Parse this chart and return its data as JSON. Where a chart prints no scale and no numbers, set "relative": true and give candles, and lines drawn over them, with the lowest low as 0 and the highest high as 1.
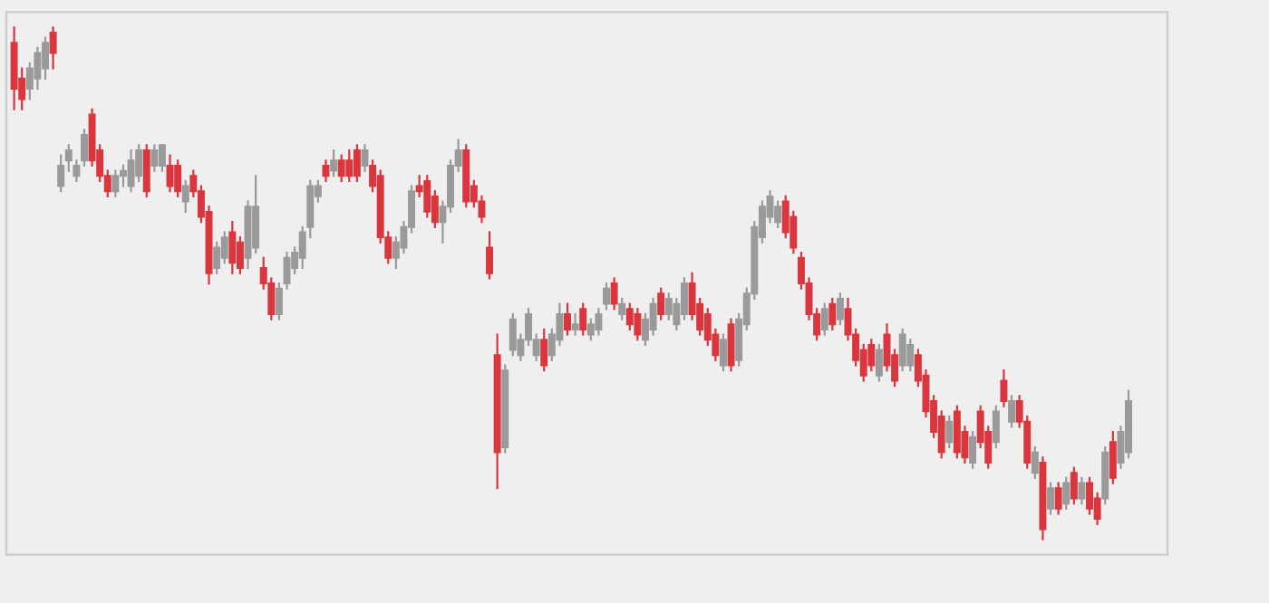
{
  "chart_data": {
    "type": "candlestick",
    "relative": true,
    "categories": [
      null,
      null,
      null,
      null,
      null,
      null,
      null,
      null,
      null,
      null,
      null,
      null,
      null,
      null,
      null,
      null,
      null,
      null,
      null,
      null,
      null,
      null,
      null,
      null,
      null,
      null,
      null,
      null,
      null,
      null,
      null,
      null,
      null,
      null,
      null,
      null,
      null,
      null,
      null,
      null,
      null,
      null,
      null,
      null,
      null,
      null,
      null,
      null,
      null,
      null,
      null,
      null,
      null,
      null,
      null,
      null,
      null,
      null,
      null,
      null,
      null,
      null,
      null,
      null,
      null,
      null,
      null,
      null,
      null,
      null,
      null,
      null,
      null,
      null,
      null,
      null,
      null,
      null,
      null,
      null,
      null,
      null,
      null,
      null,
      null,
      null,
      null,
      null,
      null,
      null,
      null,
      null,
      null,
      null,
      null,
      null,
      null,
      null,
      null,
      null,
      null,
      null,
      null,
      null,
      null,
      null,
      null,
      null,
      null,
      null,
      null,
      null,
      null,
      null,
      null,
      null,
      null,
      null,
      null,
      null,
      null,
      null,
      null,
      null,
      null,
      null,
      null,
      null,
      null,
      null,
      null,
      null,
      null,
      null,
      null,
      null,
      null,
      null,
      null,
      null,
      null,
      null,
      null,
      null
    ],
    "ohlc": [
      [
        0.97,
        1.0,
        0.84,
        0.88
      ],
      [
        0.9,
        0.92,
        0.84,
        0.86
      ],
      [
        0.88,
        0.93,
        0.86,
        0.92
      ],
      [
        0.9,
        0.96,
        0.88,
        0.95
      ],
      [
        0.92,
        0.98,
        0.9,
        0.97
      ],
      [
        0.99,
        1.0,
        0.92,
        0.95
      ],
      [
        0.69,
        0.75,
        0.68,
        0.73
      ],
      [
        0.74,
        0.77,
        0.72,
        0.76
      ],
      [
        0.71,
        0.74,
        0.7,
        0.73
      ],
      [
        0.74,
        0.8,
        0.73,
        0.79
      ],
      [
        0.83,
        0.84,
        0.73,
        0.74
      ],
      [
        0.76,
        0.77,
        0.7,
        0.71
      ],
      [
        0.71,
        0.72,
        0.67,
        0.68
      ],
      [
        0.68,
        0.72,
        0.67,
        0.71
      ],
      [
        0.71,
        0.73,
        0.69,
        0.72
      ],
      [
        0.69,
        0.76,
        0.68,
        0.74
      ],
      [
        0.71,
        0.77,
        0.7,
        0.76
      ],
      [
        0.76,
        0.77,
        0.67,
        0.68
      ],
      [
        0.73,
        0.77,
        0.72,
        0.76
      ],
      [
        0.73,
        0.77,
        0.72,
        0.77
      ],
      [
        0.73,
        0.75,
        0.68,
        0.69
      ],
      [
        0.73,
        0.74,
        0.67,
        0.68
      ],
      [
        0.66,
        0.7,
        0.64,
        0.69
      ],
      [
        0.71,
        0.72,
        0.67,
        0.68
      ],
      [
        0.68,
        0.69,
        0.62,
        0.63
      ],
      [
        0.64,
        0.65,
        0.5,
        0.52
      ],
      [
        0.53,
        0.58,
        0.52,
        0.57
      ],
      [
        0.55,
        0.6,
        0.54,
        0.59
      ],
      [
        0.6,
        0.62,
        0.52,
        0.54
      ],
      [
        0.58,
        0.59,
        0.52,
        0.53
      ],
      [
        0.55,
        0.66,
        0.53,
        0.65
      ],
      [
        0.57,
        0.71,
        0.56,
        0.65
      ],
      [
        0.53,
        0.55,
        0.49,
        0.5
      ],
      [
        0.5,
        0.51,
        0.43,
        0.44
      ],
      [
        0.44,
        0.5,
        0.43,
        0.49
      ],
      [
        0.5,
        0.56,
        0.49,
        0.55
      ],
      [
        0.53,
        0.57,
        0.52,
        0.56
      ],
      [
        0.55,
        0.61,
        0.53,
        0.6
      ],
      [
        0.61,
        0.7,
        0.59,
        0.69
      ],
      [
        0.67,
        0.7,
        0.66,
        0.69
      ],
      [
        0.73,
        0.74,
        0.7,
        0.71
      ],
      [
        0.72,
        0.76,
        0.71,
        0.74
      ],
      [
        0.74,
        0.75,
        0.7,
        0.71
      ],
      [
        0.74,
        0.76,
        0.7,
        0.71
      ],
      [
        0.76,
        0.77,
        0.7,
        0.71
      ],
      [
        0.73,
        0.77,
        0.72,
        0.76
      ],
      [
        0.73,
        0.74,
        0.68,
        0.69
      ],
      [
        0.71,
        0.72,
        0.58,
        0.59
      ],
      [
        0.59,
        0.6,
        0.54,
        0.55
      ],
      [
        0.55,
        0.59,
        0.53,
        0.58
      ],
      [
        0.57,
        0.62,
        0.56,
        0.61
      ],
      [
        0.61,
        0.69,
        0.6,
        0.68
      ],
      [
        0.69,
        0.71,
        0.67,
        0.68
      ],
      [
        0.7,
        0.71,
        0.63,
        0.64
      ],
      [
        0.67,
        0.68,
        0.61,
        0.62
      ],
      [
        0.62,
        0.66,
        0.58,
        0.65
      ],
      [
        0.65,
        0.74,
        0.64,
        0.73
      ],
      [
        0.73,
        0.78,
        0.72,
        0.76
      ],
      [
        0.76,
        0.77,
        0.65,
        0.66
      ],
      [
        0.69,
        0.7,
        0.65,
        0.66
      ],
      [
        0.66,
        0.67,
        0.62,
        0.63
      ],
      [
        0.57,
        0.6,
        0.51,
        0.52
      ],
      [
        0.36,
        0.4,
        0.1,
        0.17
      ],
      [
        0.18,
        0.34,
        0.17,
        0.33
      ],
      [
        0.37,
        0.44,
        0.36,
        0.43
      ],
      [
        0.36,
        0.4,
        0.35,
        0.39
      ],
      [
        0.39,
        0.45,
        0.38,
        0.44
      ],
      [
        0.36,
        0.4,
        0.35,
        0.39
      ],
      [
        0.39,
        0.41,
        0.33,
        0.34
      ],
      [
        0.36,
        0.41,
        0.35,
        0.4
      ],
      [
        0.39,
        0.46,
        0.38,
        0.44
      ],
      [
        0.44,
        0.46,
        0.4,
        0.41
      ],
      [
        0.41,
        0.44,
        0.4,
        0.42
      ],
      [
        0.45,
        0.46,
        0.4,
        0.41
      ],
      [
        0.4,
        0.43,
        0.39,
        0.42
      ],
      [
        0.41,
        0.45,
        0.4,
        0.44
      ],
      [
        0.46,
        0.5,
        0.45,
        0.49
      ],
      [
        0.5,
        0.51,
        0.45,
        0.46
      ],
      [
        0.44,
        0.47,
        0.43,
        0.46
      ],
      [
        0.45,
        0.46,
        0.41,
        0.42
      ],
      [
        0.44,
        0.45,
        0.39,
        0.4
      ],
      [
        0.39,
        0.44,
        0.38,
        0.43
      ],
      [
        0.41,
        0.47,
        0.4,
        0.46
      ],
      [
        0.48,
        0.49,
        0.43,
        0.44
      ],
      [
        0.44,
        0.48,
        0.43,
        0.47
      ],
      [
        0.42,
        0.47,
        0.41,
        0.46
      ],
      [
        0.44,
        0.51,
        0.43,
        0.5
      ],
      [
        0.5,
        0.52,
        0.43,
        0.44
      ],
      [
        0.46,
        0.47,
        0.4,
        0.41
      ],
      [
        0.44,
        0.45,
        0.38,
        0.39
      ],
      [
        0.4,
        0.41,
        0.35,
        0.36
      ],
      [
        0.34,
        0.4,
        0.33,
        0.39
      ],
      [
        0.42,
        0.43,
        0.33,
        0.34
      ],
      [
        0.35,
        0.44,
        0.34,
        0.43
      ],
      [
        0.42,
        0.49,
        0.41,
        0.48
      ],
      [
        0.48,
        0.62,
        0.47,
        0.61
      ],
      [
        0.59,
        0.66,
        0.58,
        0.65
      ],
      [
        0.63,
        0.68,
        0.62,
        0.67
      ],
      [
        0.62,
        0.66,
        0.61,
        0.65
      ],
      [
        0.66,
        0.67,
        0.59,
        0.6
      ],
      [
        0.63,
        0.64,
        0.56,
        0.57
      ],
      [
        0.55,
        0.56,
        0.49,
        0.5
      ],
      [
        0.5,
        0.51,
        0.43,
        0.44
      ],
      [
        0.44,
        0.45,
        0.39,
        0.4
      ],
      [
        0.41,
        0.46,
        0.4,
        0.45
      ],
      [
        0.46,
        0.47,
        0.41,
        0.42
      ],
      [
        0.43,
        0.48,
        0.42,
        0.47
      ],
      [
        0.45,
        0.47,
        0.39,
        0.4
      ],
      [
        0.4,
        0.41,
        0.34,
        0.35
      ],
      [
        0.37,
        0.38,
        0.31,
        0.32
      ],
      [
        0.38,
        0.39,
        0.33,
        0.34
      ],
      [
        0.32,
        0.38,
        0.31,
        0.37
      ],
      [
        0.4,
        0.42,
        0.33,
        0.34
      ],
      [
        0.36,
        0.37,
        0.3,
        0.31
      ],
      [
        0.34,
        0.41,
        0.33,
        0.4
      ],
      [
        0.34,
        0.39,
        0.33,
        0.38
      ],
      [
        0.36,
        0.37,
        0.3,
        0.31
      ],
      [
        0.32,
        0.33,
        0.24,
        0.25
      ],
      [
        0.27,
        0.28,
        0.2,
        0.21
      ],
      [
        0.24,
        0.25,
        0.16,
        0.17
      ],
      [
        0.19,
        0.24,
        0.18,
        0.23
      ],
      [
        0.25,
        0.26,
        0.16,
        0.17
      ],
      [
        0.21,
        0.22,
        0.15,
        0.16
      ],
      [
        0.15,
        0.21,
        0.14,
        0.2
      ],
      [
        0.25,
        0.26,
        0.18,
        0.19
      ],
      [
        0.21,
        0.22,
        0.14,
        0.15
      ],
      [
        0.19,
        0.26,
        0.18,
        0.25
      ],
      [
        0.31,
        0.33,
        0.26,
        0.27
      ],
      [
        0.23,
        0.28,
        0.22,
        0.27
      ],
      [
        0.27,
        0.28,
        0.22,
        0.23
      ],
      [
        0.23,
        0.24,
        0.14,
        0.15
      ],
      [
        0.13,
        0.18,
        0.12,
        0.17
      ],
      [
        0.15,
        0.16,
        0.0,
        0.02
      ],
      [
        0.06,
        0.11,
        0.05,
        0.1
      ],
      [
        0.1,
        0.11,
        0.05,
        0.06
      ],
      [
        0.07,
        0.12,
        0.06,
        0.11
      ],
      [
        0.13,
        0.14,
        0.07,
        0.08
      ],
      [
        0.08,
        0.12,
        0.07,
        0.11
      ],
      [
        0.11,
        0.12,
        0.05,
        0.06
      ],
      [
        0.08,
        0.09,
        0.03,
        0.04
      ],
      [
        0.08,
        0.18,
        0.07,
        0.17
      ],
      [
        0.19,
        0.21,
        0.11,
        0.12
      ],
      [
        0.15,
        0.22,
        0.14,
        0.21
      ],
      [
        0.17,
        0.29,
        0.16,
        0.27
      ]
    ]
  }
}
